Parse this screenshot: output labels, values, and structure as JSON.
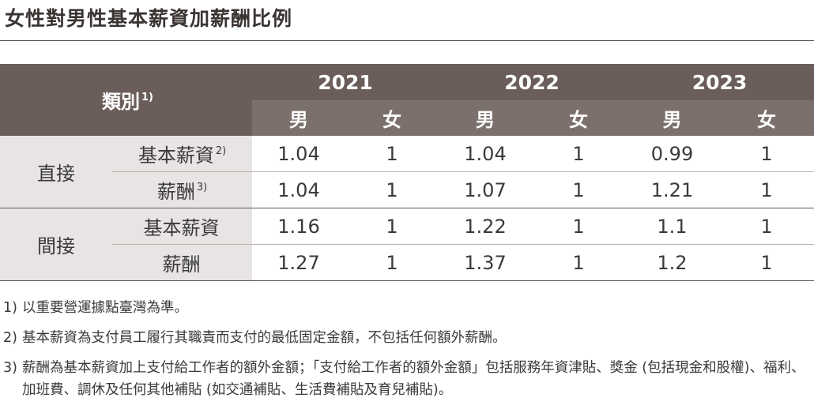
{
  "title": "女性對男性基本薪資加薪酬比例",
  "table": {
    "category_label": "類別",
    "category_sup": "1)",
    "years": [
      "2021",
      "2022",
      "2023"
    ],
    "genders": [
      "男",
      "女",
      "男",
      "女",
      "男",
      "女"
    ],
    "groups": [
      {
        "name": "直接",
        "rows": [
          {
            "label": "基本薪資",
            "sup": "2)",
            "values": [
              "1.04",
              "1",
              "1.04",
              "1",
              "0.99",
              "1"
            ]
          },
          {
            "label": "薪酬",
            "sup": "3)",
            "values": [
              "1.04",
              "1",
              "1.07",
              "1",
              "1.21",
              "1"
            ]
          }
        ]
      },
      {
        "name": "間接",
        "rows": [
          {
            "label": "基本薪資",
            "sup": "",
            "values": [
              "1.16",
              "1",
              "1.22",
              "1",
              "1.1",
              "1"
            ]
          },
          {
            "label": "薪酬",
            "sup": "",
            "values": [
              "1.27",
              "1",
              "1.37",
              "1",
              "1.2",
              "1"
            ]
          }
        ]
      }
    ]
  },
  "notes": [
    {
      "num": "1)",
      "text": "以重要營運據點臺灣為準。"
    },
    {
      "num": "2)",
      "text": "基本薪資為支付員工履行其職責而支付的最低固定金額，不包括任何額外薪酬。"
    },
    {
      "num": "3)",
      "text": "薪酬為基本薪資加上支付給工作者的額外金額；「支付給工作者的額外金額」包括服務年資津貼、獎金 (包括現金和股權)、福利、加班費、調休及任何其他補貼 (如交通補貼、生活費補貼及育兒補貼)。"
    }
  ]
}
